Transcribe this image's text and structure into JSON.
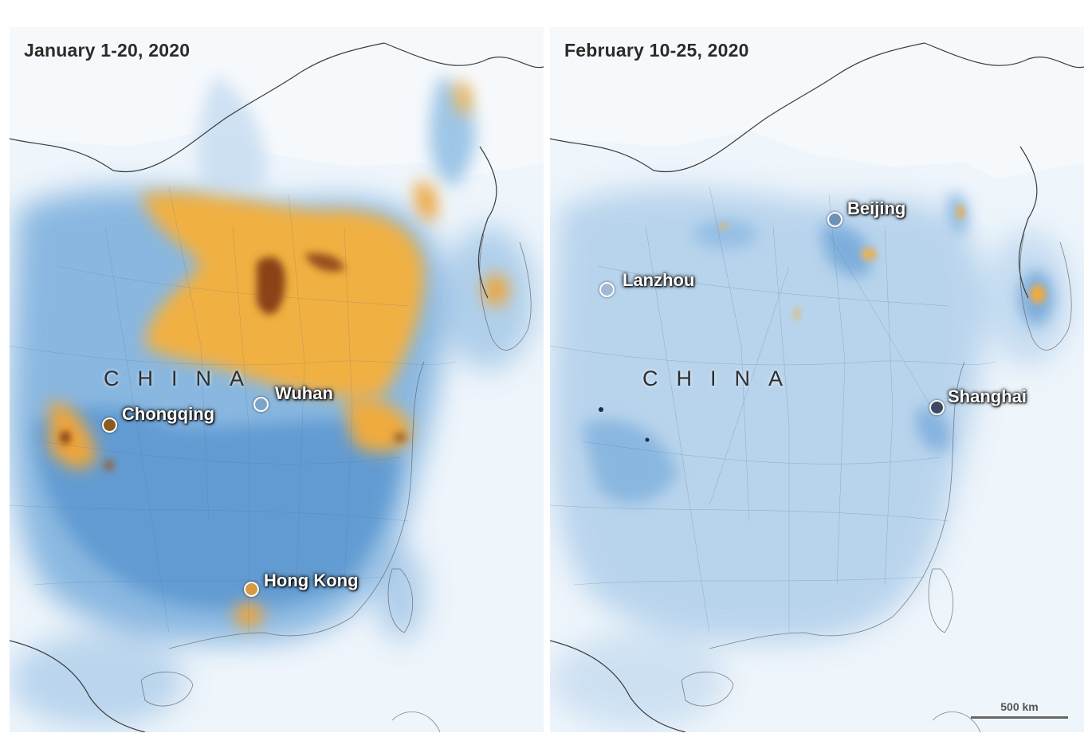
{
  "panels": {
    "left": {
      "title": "January 1-20, 2020",
      "country_label": "CHINA",
      "cities": [
        {
          "name": "Wuhan",
          "marker_color": "#7ea3c9"
        },
        {
          "name": "Chongqing",
          "marker_color": "#8a5a1f"
        },
        {
          "name": "Hong Kong",
          "marker_color": "#d59b3e"
        }
      ]
    },
    "right": {
      "title": "February 10-25, 2020",
      "country_label": "CHINA",
      "cities": [
        {
          "name": "Beijing",
          "marker_color": "#6f90b8"
        },
        {
          "name": "Lanzhou",
          "marker_color": "#9fb9d6"
        },
        {
          "name": "Shanghai",
          "marker_color": "#3b4b66"
        }
      ]
    }
  },
  "scale": {
    "label": "500 km"
  },
  "colors": {
    "ocean": "#eef5fb",
    "land_light": "#e5eff8",
    "no2_low": "#6ea7d9",
    "no2_mid": "#3f83c6",
    "no2_high": "#f0ae34",
    "no2_very_high": "#7b3a10",
    "boundary": "#4a4a4a"
  },
  "icons": {
    "city_marker": "circle-marker-icon"
  }
}
